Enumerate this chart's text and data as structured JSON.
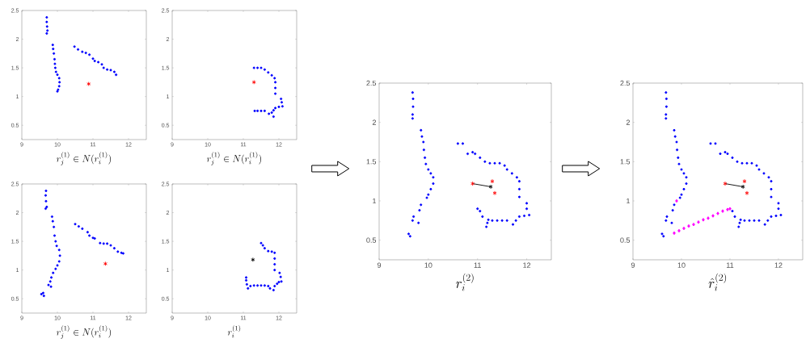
{
  "chart_data": [
    {
      "type": "scatter",
      "xlabel": "r_j^{(1)} \\in N(r_i^{(1)})",
      "xlim": [
        9,
        12.5
      ],
      "ylim": [
        0.25,
        2.5
      ],
      "xticks": [
        9,
        10,
        11,
        12
      ],
      "yticks": [
        0.5,
        1,
        1.5,
        2,
        2.5
      ],
      "series": [
        {
          "color": "#0000ff",
          "marker": "circle",
          "x": [
            9.7,
            9.7,
            9.71,
            9.72,
            9.7,
            9.87,
            9.88,
            9.9,
            9.92,
            9.93,
            9.94,
            9.96,
            10.0,
            10.05,
            10.06,
            10.05,
            10.02,
            10.0,
            10.48,
            10.58,
            10.7,
            10.8,
            10.9,
            11.0,
            11.05,
            11.15,
            11.25,
            11.3,
            11.4,
            11.5,
            11.6,
            11.65
          ],
          "values": [
            2.38,
            2.3,
            2.22,
            2.15,
            2.1,
            1.9,
            1.83,
            1.75,
            1.65,
            1.57,
            1.5,
            1.43,
            1.38,
            1.32,
            1.25,
            1.18,
            1.12,
            1.09,
            1.87,
            1.82,
            1.78,
            1.76,
            1.73,
            1.66,
            1.62,
            1.6,
            1.56,
            1.5,
            1.47,
            1.46,
            1.43,
            1.38
          ]
        },
        {
          "color": "#ff0000",
          "marker": "cross",
          "x": [
            10.88
          ],
          "values": [
            1.22
          ]
        }
      ]
    },
    {
      "type": "scatter",
      "xlabel": "r_j^{(1)} \\in N(r_i^{(1)})",
      "xlim": [
        9,
        12.5
      ],
      "ylim": [
        0.25,
        2.5
      ],
      "xticks": [
        9,
        10,
        11,
        12
      ],
      "yticks": [
        0.5,
        1,
        1.5,
        2,
        2.5
      ],
      "series": [
        {
          "color": "#0000ff",
          "marker": "circle",
          "x": [
            11.3,
            11.4,
            11.5,
            11.6,
            11.7,
            11.8,
            11.88,
            11.9,
            11.9,
            11.9,
            12.06,
            12.08,
            12.1,
            12.0,
            11.9,
            11.85,
            11.8,
            11.72,
            11.85,
            11.6,
            11.5,
            11.4,
            11.32
          ],
          "values": [
            1.5,
            1.5,
            1.5,
            1.47,
            1.42,
            1.37,
            1.32,
            1.25,
            1.15,
            1.05,
            0.96,
            0.9,
            0.83,
            0.82,
            0.8,
            0.76,
            0.72,
            0.7,
            0.65,
            0.75,
            0.75,
            0.75,
            0.75
          ]
        },
        {
          "color": "#ff0000",
          "marker": "cross",
          "x": [
            11.3
          ],
          "values": [
            1.25
          ]
        }
      ]
    },
    {
      "type": "scatter",
      "xlabel": "r_j^{(1)} \\in N(r_i^{(1)})",
      "xlim": [
        9,
        12.5
      ],
      "ylim": [
        0.25,
        2.5
      ],
      "xticks": [
        9,
        10,
        11,
        12
      ],
      "yticks": [
        0.5,
        1,
        1.5,
        2,
        2.5
      ],
      "series": [
        {
          "color": "#0000ff",
          "marker": "circle",
          "x": [
            9.68,
            9.67,
            9.68,
            9.7,
            9.67,
            9.85,
            9.87,
            9.9,
            9.92,
            9.95,
            9.98,
            10.05,
            10.07,
            10.05,
            10.0,
            9.95,
            9.88,
            9.83,
            9.8,
            9.75,
            9.82,
            9.6,
            9.55,
            9.62,
            10.5,
            10.6,
            10.7,
            10.85,
            10.9,
            11.0,
            11.05,
            11.2,
            11.3,
            11.4,
            11.5,
            11.6,
            11.7,
            11.8,
            11.85
          ],
          "values": [
            2.38,
            2.3,
            2.2,
            2.1,
            2.07,
            1.93,
            1.85,
            1.75,
            1.6,
            1.5,
            1.42,
            1.35,
            1.25,
            1.15,
            1.08,
            1.02,
            0.95,
            0.87,
            0.8,
            0.74,
            0.71,
            0.6,
            0.58,
            0.55,
            1.8,
            1.76,
            1.72,
            1.66,
            1.6,
            1.56,
            1.55,
            1.47,
            1.46,
            1.46,
            1.43,
            1.38,
            1.32,
            1.3,
            1.29
          ]
        },
        {
          "color": "#ff0000",
          "marker": "cross",
          "x": [
            11.35
          ],
          "values": [
            1.11
          ]
        }
      ]
    },
    {
      "type": "scatter",
      "xlabel": "r_i^{(1)}",
      "xlim": [
        9,
        12.5
      ],
      "ylim": [
        0.25,
        2.5
      ],
      "xticks": [
        9,
        10,
        11,
        12
      ],
      "yticks": [
        0.5,
        1,
        1.5,
        2,
        2.5
      ],
      "series": [
        {
          "color": "#0000ff",
          "marker": "circle",
          "x": [
            11.5,
            11.55,
            11.6,
            11.7,
            11.8,
            11.88,
            11.88,
            11.88,
            11.88,
            12.02,
            12.05,
            12.07,
            12.0,
            11.95,
            11.88,
            11.85,
            11.75,
            11.7,
            11.6,
            11.5,
            11.4,
            11.3,
            11.2,
            11.13,
            11.1,
            11.08,
            11.08
          ],
          "values": [
            1.47,
            1.43,
            1.38,
            1.33,
            1.32,
            1.3,
            1.2,
            1.1,
            1.0,
            0.95,
            0.88,
            0.8,
            0.79,
            0.76,
            0.72,
            0.65,
            0.68,
            0.72,
            0.73,
            0.73,
            0.73,
            0.73,
            0.72,
            0.68,
            0.75,
            0.82,
            0.87
          ]
        },
        {
          "color": "#000000",
          "marker": "cross",
          "x": [
            11.27
          ],
          "values": [
            1.18
          ]
        }
      ]
    },
    {
      "type": "scatter",
      "xlabel": "r_i^{(2)}",
      "xlim": [
        9,
        12.5
      ],
      "ylim": [
        0.25,
        2.5
      ],
      "xticks": [
        9,
        10,
        11,
        12
      ],
      "yticks": [
        0.5,
        1,
        1.5,
        2,
        2.5
      ],
      "series": [
        {
          "color": "#0000ff",
          "marker": "circle",
          "x": [
            9.68,
            9.69,
            9.69,
            9.68,
            9.68,
            9.85,
            9.87,
            9.9,
            9.91,
            9.93,
            9.95,
            10.0,
            10.05,
            10.1,
            10.1,
            10.05,
            10.0,
            9.97,
            9.85,
            9.82,
            9.7,
            9.68,
            9.8,
            9.6,
            9.63,
            10.6,
            10.7,
            10.8,
            10.9,
            10.95,
            11.05,
            11.15,
            11.25,
            11.35,
            11.45,
            11.55,
            11.6,
            11.7,
            11.8,
            11.85,
            11.85,
            11.85,
            12.0,
            12.0,
            12.05,
            11.95,
            11.85,
            11.78,
            11.72,
            11.6,
            11.5,
            11.4,
            11.3,
            11.22,
            11.2,
            11.18,
            11.1,
            11.05,
            11.0
          ],
          "values": [
            2.38,
            2.3,
            2.2,
            2.1,
            2.05,
            1.9,
            1.82,
            1.75,
            1.65,
            1.55,
            1.47,
            1.4,
            1.35,
            1.3,
            1.22,
            1.15,
            1.08,
            1.04,
            0.95,
            0.88,
            0.8,
            0.75,
            0.72,
            0.58,
            0.55,
            1.73,
            1.73,
            1.6,
            1.62,
            1.6,
            1.55,
            1.5,
            1.48,
            1.48,
            1.48,
            1.45,
            1.4,
            1.35,
            1.3,
            1.25,
            1.15,
            1.05,
            0.97,
            0.9,
            0.82,
            0.81,
            0.8,
            0.75,
            0.7,
            0.75,
            0.75,
            0.75,
            0.75,
            0.76,
            0.72,
            0.67,
            0.8,
            0.87,
            0.9
          ]
        },
        {
          "color": "#ff0000",
          "marker": "cross",
          "x": [
            10.9,
            11.3,
            11.35
          ],
          "values": [
            1.22,
            1.25,
            1.1
          ]
        },
        {
          "color": "#000000",
          "marker": "cross",
          "x": [
            11.27
          ],
          "values": [
            1.18
          ]
        },
        {
          "type": "line",
          "color": "#000000",
          "marker": "none",
          "x": [
            10.9,
            11.27
          ],
          "values": [
            1.22,
            1.18
          ]
        }
      ]
    },
    {
      "type": "scatter",
      "xlabel": "\\hat{r}_i^{(2)}",
      "xlim": [
        9,
        12.5
      ],
      "ylim": [
        0.25,
        2.5
      ],
      "xticks": [
        9,
        10,
        11,
        12
      ],
      "yticks": [
        0.5,
        1,
        1.5,
        2,
        2.5
      ],
      "series": [
        {
          "color": "#0000ff",
          "marker": "circle",
          "x": [
            9.68,
            9.69,
            9.69,
            9.68,
            9.68,
            9.85,
            9.87,
            9.9,
            9.91,
            9.93,
            9.95,
            10.0,
            10.05,
            10.1,
            10.1,
            10.05,
            10.0,
            9.97,
            9.85,
            9.82,
            9.7,
            9.68,
            9.8,
            9.6,
            9.63,
            10.6,
            10.7,
            10.8,
            10.9,
            10.95,
            11.05,
            11.15,
            11.25,
            11.35,
            11.45,
            11.55,
            11.6,
            11.7,
            11.8,
            11.85,
            11.85,
            11.85,
            12.0,
            12.0,
            12.05,
            11.95,
            11.85,
            11.78,
            11.72,
            11.6,
            11.5,
            11.4,
            11.3,
            11.22,
            11.2,
            11.18,
            11.1,
            11.05
          ],
          "values": [
            2.38,
            2.3,
            2.2,
            2.1,
            2.05,
            1.9,
            1.82,
            1.75,
            1.65,
            1.55,
            1.47,
            1.4,
            1.35,
            1.3,
            1.22,
            1.15,
            1.08,
            1.04,
            0.95,
            0.88,
            0.8,
            0.75,
            0.72,
            0.58,
            0.55,
            1.73,
            1.73,
            1.6,
            1.62,
            1.6,
            1.55,
            1.5,
            1.48,
            1.48,
            1.48,
            1.45,
            1.4,
            1.35,
            1.3,
            1.25,
            1.15,
            1.05,
            0.97,
            0.9,
            0.82,
            0.81,
            0.8,
            0.75,
            0.7,
            0.75,
            0.75,
            0.75,
            0.75,
            0.76,
            0.72,
            0.67,
            0.8,
            0.87
          ]
        },
        {
          "color": "#ff00ff",
          "marker": "diamond",
          "x": [
            9.85,
            9.95,
            10.05,
            10.15,
            10.25,
            10.35,
            10.45,
            10.55,
            10.65,
            10.75,
            10.85,
            10.95,
            11.0,
            9.9
          ],
          "values": [
            0.59,
            0.62,
            0.65,
            0.68,
            0.7,
            0.73,
            0.76,
            0.78,
            0.81,
            0.84,
            0.87,
            0.89,
            0.9,
            1.0
          ]
        },
        {
          "color": "#ff0000",
          "marker": "cross",
          "x": [
            10.9,
            11.3,
            11.35
          ],
          "values": [
            1.22,
            1.25,
            1.1
          ]
        },
        {
          "color": "#000000",
          "marker": "cross",
          "x": [
            11.27
          ],
          "values": [
            1.18
          ]
        },
        {
          "type": "line",
          "color": "#000000",
          "marker": "none",
          "x": [
            10.9,
            11.27
          ],
          "values": [
            1.22,
            1.18
          ]
        }
      ]
    }
  ]
}
